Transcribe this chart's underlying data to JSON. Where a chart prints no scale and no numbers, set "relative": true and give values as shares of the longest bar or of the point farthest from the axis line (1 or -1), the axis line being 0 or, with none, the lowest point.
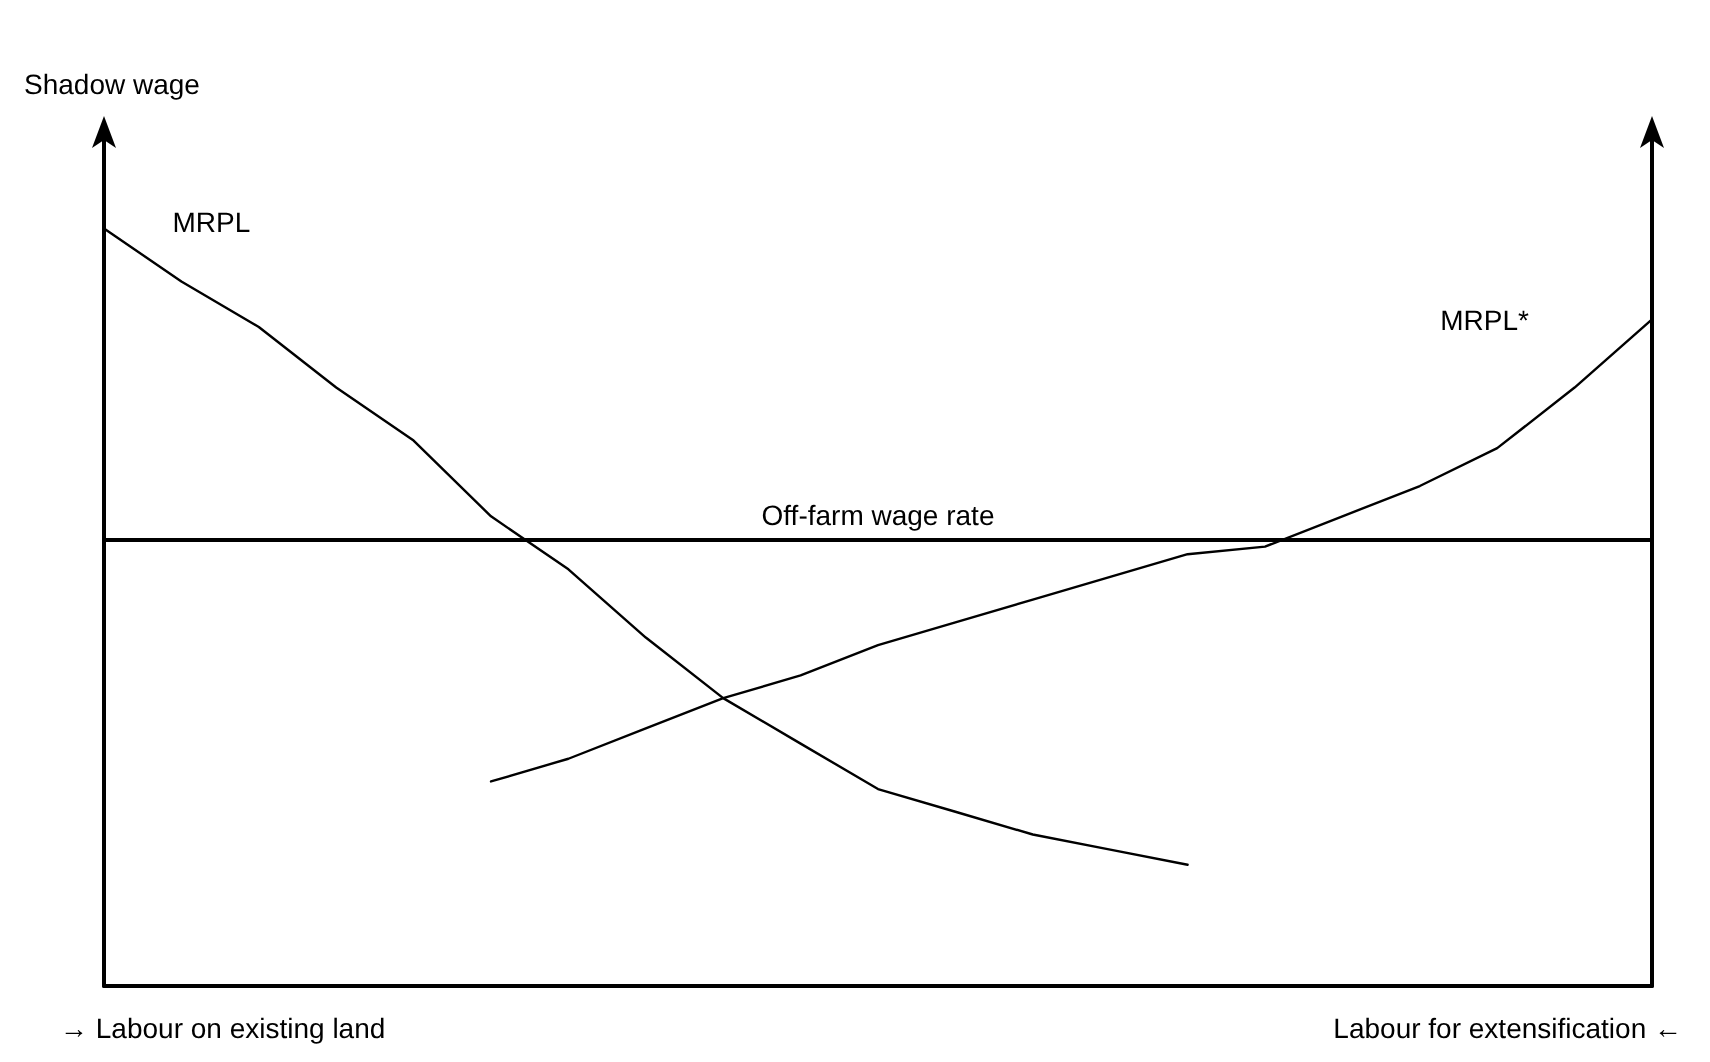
{
  "chart_data": {
    "type": "line",
    "relative": true,
    "ylabel": "Shadow wage",
    "xlabel": "→ Labour on existing land",
    "annotations": [
      "Labour for extensification ←"
    ],
    "legend": false,
    "grid": false,
    "marker": "none",
    "line_style": "solid",
    "categories": [
      null,
      null,
      null,
      null,
      null,
      null,
      null,
      null,
      null,
      null,
      null,
      null,
      null,
      null,
      null,
      null,
      null,
      null,
      null,
      null,
      null
    ],
    "series": [
      {
        "name": "MRPL",
        "color": "#000000",
        "values": [
          1,
          0.93,
          0.87,
          0.79,
          0.72,
          0.62,
          0.55,
          0.46,
          0.38,
          0.32,
          0.26,
          0.23,
          0.2,
          0.18,
          0.16,
          null,
          null,
          null,
          null,
          null,
          null
        ]
      },
      {
        "name": "MRPL*",
        "color": "#000000",
        "values": [
          null,
          null,
          null,
          null,
          null,
          0.27,
          0.3,
          0.34,
          0.38,
          0.41,
          0.45,
          0.48,
          0.51,
          0.54,
          0.57,
          0.58,
          0.62,
          0.66,
          0.71,
          0.79,
          0.88
        ]
      }
    ],
    "ref_lines": [
      {
        "axis": "y",
        "value": 0.59,
        "label": "Off-farm wage rate",
        "color": "#000000",
        "line_style": "solid"
      }
    ]
  }
}
